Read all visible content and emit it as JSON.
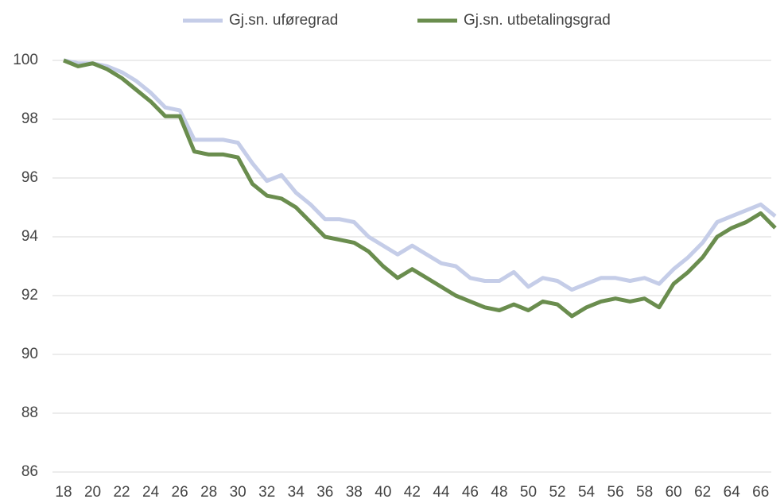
{
  "chart_data": {
    "type": "line",
    "x": [
      18,
      19,
      20,
      21,
      22,
      23,
      24,
      25,
      26,
      27,
      28,
      29,
      30,
      31,
      32,
      33,
      34,
      35,
      36,
      37,
      38,
      39,
      40,
      41,
      42,
      43,
      44,
      45,
      46,
      47,
      48,
      49,
      50,
      51,
      52,
      53,
      54,
      55,
      56,
      57,
      58,
      59,
      60,
      61,
      62,
      63,
      64,
      65,
      66,
      67
    ],
    "series": [
      {
        "name": "Gj.sn. uføregrad",
        "color": "#c5cde8",
        "values": [
          100,
          99.9,
          99.9,
          99.8,
          99.6,
          99.3,
          98.9,
          98.4,
          98.3,
          97.3,
          97.3,
          97.3,
          97.2,
          96.5,
          95.9,
          96.1,
          95.5,
          95.1,
          94.6,
          94.6,
          94.5,
          94.0,
          93.7,
          93.4,
          93.7,
          93.4,
          93.1,
          93.0,
          92.6,
          92.5,
          92.5,
          92.8,
          92.3,
          92.6,
          92.5,
          92.2,
          92.4,
          92.6,
          92.6,
          92.5,
          92.6,
          92.4,
          92.9,
          93.3,
          93.8,
          94.5,
          94.7,
          94.9,
          95.1,
          94.7
        ]
      },
      {
        "name": "Gj.sn. utbetalingsgrad",
        "color": "#6a8d4e",
        "values": [
          100,
          99.8,
          99.9,
          99.7,
          99.4,
          99.0,
          98.6,
          98.1,
          98.1,
          96.9,
          96.8,
          96.8,
          96.7,
          95.8,
          95.4,
          95.3,
          95.0,
          94.5,
          94.0,
          93.9,
          93.8,
          93.5,
          93.0,
          92.6,
          92.9,
          92.6,
          92.3,
          92.0,
          91.8,
          91.6,
          91.5,
          91.7,
          91.5,
          91.8,
          91.7,
          91.3,
          91.6,
          91.8,
          91.9,
          91.8,
          91.9,
          91.6,
          92.4,
          92.8,
          93.3,
          94.0,
          94.3,
          94.5,
          94.8,
          94.3
        ]
      }
    ],
    "xlim": [
      18,
      67
    ],
    "xticks": [
      18,
      20,
      22,
      24,
      26,
      28,
      30,
      32,
      34,
      36,
      38,
      40,
      42,
      44,
      46,
      48,
      50,
      52,
      54,
      56,
      58,
      60,
      62,
      64,
      66
    ],
    "ylim": [
      86,
      100
    ],
    "yticks": [
      86,
      88,
      90,
      92,
      94,
      96,
      98,
      100
    ],
    "grid": true,
    "legend": "top"
  }
}
